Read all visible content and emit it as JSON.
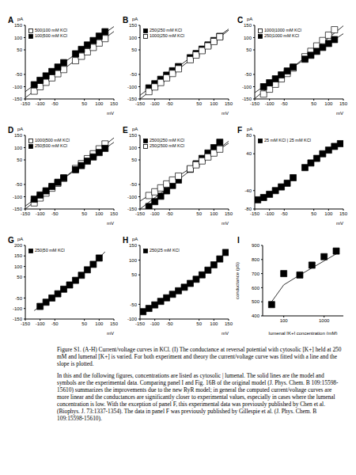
{
  "chart_data": [
    {
      "type": "scatter",
      "label": "A",
      "xlabel": "mV",
      "ylabel": "pA",
      "xlim": [
        -150,
        150
      ],
      "xticks": [
        -150,
        -100,
        -50,
        50,
        100,
        150
      ],
      "ylim": [
        -150,
        150
      ],
      "yticks": [
        -150,
        -100,
        -50,
        50,
        100,
        150
      ],
      "legend": "upper left",
      "series": [
        {
          "name": "500|100 mM KCl",
          "color": "#000000",
          "marker": "square_open",
          "x": [
            -120,
            -100,
            -80,
            -60,
            -40,
            -20,
            20,
            40,
            60,
            80,
            100,
            120
          ],
          "values": [
            -118,
            -100,
            -82,
            -64,
            -47,
            -30,
            6,
            24,
            42,
            60,
            78,
            96
          ],
          "model_x": [
            -150,
            0,
            150
          ],
          "model_values": [
            -145,
            -10,
            125
          ]
        },
        {
          "name": "100|500 mM KCl",
          "color": "#000000",
          "marker": "square",
          "x": [
            -120,
            -100,
            -80,
            -60,
            -40,
            -20,
            20,
            40,
            60,
            80,
            100,
            120
          ],
          "values": [
            -92,
            -74,
            -56,
            -38,
            -20,
            -2,
            34,
            52,
            70,
            88,
            106,
            124
          ],
          "model_x": [
            -150,
            0,
            150
          ],
          "model_values": [
            -120,
            15,
            145
          ]
        }
      ]
    },
    {
      "type": "scatter",
      "label": "B",
      "xlabel": "mV",
      "ylabel": "pA",
      "xlim": [
        -150,
        150
      ],
      "xticks": [
        -150,
        -100,
        -50,
        50,
        100,
        150
      ],
      "ylim": [
        -150,
        150
      ],
      "yticks": [
        -150,
        -100,
        -50,
        50,
        100,
        150
      ],
      "legend": "upper left",
      "series": [
        {
          "name": "250|250 mM KCl",
          "color": "#000000",
          "marker": "square",
          "x": [
            -120,
            -100,
            -80,
            -60,
            -40,
            -20,
            20,
            40,
            60,
            80,
            100,
            120
          ],
          "values": [
            -105,
            -88,
            -70,
            -53,
            -35,
            -18,
            18,
            35,
            53,
            70,
            88,
            105
          ],
          "model_x": [
            -150,
            0,
            150
          ],
          "model_values": [
            -135,
            0,
            135
          ]
        },
        {
          "name": "1000|250 mM KCl",
          "color": "#000000",
          "marker": "square_open",
          "x": [
            -120,
            -100,
            -80,
            -60,
            -40,
            -20,
            20,
            40,
            60,
            80,
            100,
            120
          ],
          "values": [
            -120,
            -101,
            -83,
            -64,
            -46,
            -27,
            10,
            29,
            47,
            66,
            84,
            103
          ],
          "model_x": [
            -150,
            0,
            150
          ],
          "model_values": [
            -150,
            -10,
            130
          ]
        }
      ]
    },
    {
      "type": "scatter",
      "label": "C",
      "xlabel": "mV",
      "ylabel": "pA",
      "xlim": [
        -150,
        150
      ],
      "xticks": [
        -150,
        -100,
        -50,
        50,
        100,
        150
      ],
      "ylim": [
        -150,
        150
      ],
      "yticks": [
        -150,
        -100,
        -50,
        50,
        100,
        150
      ],
      "legend": "upper left",
      "series": [
        {
          "name": "1000|1000 mM KCl",
          "color": "#000000",
          "marker": "square_open",
          "x": [
            -120,
            -100,
            -80,
            -60,
            -40,
            -20,
            20,
            40,
            60,
            80,
            100,
            120
          ],
          "values": [
            -130,
            -110,
            -90,
            -68,
            -46,
            -24,
            22,
            44,
            66,
            88,
            110,
            132
          ],
          "model_x": [
            -150,
            0,
            150
          ],
          "model_values": [
            -148,
            0,
            148
          ]
        },
        {
          "name": "250|1000 mM KCl",
          "color": "#000000",
          "marker": "square",
          "x": [
            -120,
            -100,
            -80,
            -60,
            -40,
            -20,
            20,
            40,
            60,
            80,
            100,
            120
          ],
          "values": [
            -100,
            -84,
            -68,
            -52,
            -36,
            -20,
            12,
            28,
            44,
            60,
            76,
            92
          ],
          "model_x": [
            -150,
            0,
            150
          ],
          "model_values": [
            -124,
            -4,
            116
          ]
        }
      ]
    },
    {
      "type": "scatter",
      "label": "D",
      "xlabel": "mV",
      "ylabel": "pA",
      "xlim": [
        -150,
        150
      ],
      "xticks": [
        -150,
        -100,
        -50,
        50,
        100,
        150
      ],
      "ylim": [
        -150,
        150
      ],
      "yticks": [
        -150,
        -100,
        -50,
        50,
        100,
        150
      ],
      "legend": "upper left",
      "series": [
        {
          "name": "1000|500 mM KCl",
          "color": "#000000",
          "marker": "square_open",
          "x": [
            -120,
            -100,
            -80,
            -60,
            -40,
            -20,
            20,
            40,
            60,
            80,
            100,
            120
          ],
          "values": [
            -125,
            -105,
            -85,
            -65,
            -45,
            -25,
            15,
            35,
            55,
            75,
            95,
            115
          ],
          "model_x": [
            -150,
            0,
            150
          ],
          "model_values": [
            -150,
            -5,
            140
          ]
        },
        {
          "name": "250|500 mM KCl",
          "color": "#000000",
          "marker": "square",
          "x": [
            -120,
            -100,
            -80,
            -60,
            -40,
            -20,
            20,
            40,
            60,
            80,
            100,
            120
          ],
          "values": [
            -110,
            -93,
            -76,
            -58,
            -41,
            -23,
            10,
            27,
            45,
            62,
            80,
            97
          ],
          "model_x": [
            -150,
            0,
            150
          ],
          "model_values": [
            -138,
            -8,
            122
          ]
        }
      ]
    },
    {
      "type": "scatter",
      "label": "E",
      "xlabel": "mV",
      "ylabel": "pA",
      "xlim": [
        -150,
        150
      ],
      "xticks": [
        -150,
        -100,
        -50,
        50,
        100,
        150
      ],
      "ylim": [
        -150,
        150
      ],
      "yticks": [
        -150,
        -100,
        -50,
        50,
        100,
        150
      ],
      "legend": "upper left",
      "series": [
        {
          "name": "2500|250 mM KCl",
          "color": "#000000",
          "marker": "square",
          "x": [
            -120,
            -100,
            -80,
            -60,
            -40,
            -20,
            20,
            40,
            60,
            80,
            100,
            120
          ],
          "values": [
            -140,
            -120,
            -98,
            -76,
            -54,
            -32,
            12,
            34,
            56,
            78,
            100,
            122
          ],
          "model_x": [
            -150,
            0,
            150
          ],
          "model_values": [
            -150,
            -12,
            126
          ]
        },
        {
          "name": "250|2500 mM KCl",
          "color": "#000000",
          "marker": "square_open",
          "x": [
            -120,
            -100,
            -80,
            -60,
            -40,
            -20,
            20,
            40,
            60,
            80,
            100,
            120
          ],
          "values": [
            -95,
            -80,
            -64,
            -48,
            -32,
            -16,
            14,
            30,
            46,
            62,
            78,
            94
          ],
          "model_x": [
            -150,
            0,
            150
          ],
          "model_values": [
            -118,
            0,
            118
          ]
        }
      ]
    },
    {
      "type": "scatter",
      "label": "F",
      "xlabel": "mV",
      "ylabel": "pA",
      "xlim": [
        -150,
        150
      ],
      "xticks": [
        -150,
        -100,
        -50,
        50,
        100,
        150
      ],
      "ylim": [
        -80,
        80
      ],
      "yticks": [
        -80,
        -40,
        40,
        80
      ],
      "legend": "upper left",
      "series": [
        {
          "name": "25 mM KCl | 25 mM KCl",
          "color": "#000000",
          "marker": "square",
          "x": [
            -140,
            -120,
            -100,
            -80,
            -60,
            -40,
            -20,
            20,
            40,
            60,
            80,
            100,
            120,
            140
          ],
          "values": [
            -60,
            -55,
            -48,
            -40,
            -32,
            -24,
            -12,
            10,
            20,
            30,
            40,
            48,
            56,
            62
          ]
        }
      ]
    },
    {
      "type": "scatter",
      "label": "G",
      "xlabel": "mV",
      "ylabel": "pA",
      "xlim": [
        -150,
        150
      ],
      "xticks": [
        -150,
        -100,
        -50,
        50,
        100,
        150
      ],
      "ylim": [
        -150,
        200
      ],
      "yticks": [
        -150,
        -100,
        -50,
        50,
        100,
        150,
        200
      ],
      "legend": "upper left",
      "series": [
        {
          "name": "250|50 mM KCl",
          "color": "#000000",
          "marker": "square",
          "x": [
            -100,
            -80,
            -60,
            -40,
            -20,
            0,
            20,
            40,
            60,
            80,
            100
          ],
          "values": [
            -90,
            -70,
            -50,
            -30,
            -8,
            12,
            34,
            58,
            84,
            110,
            140
          ],
          "model_x": [
            -120,
            -60,
            0,
            60,
            120
          ],
          "model_values": [
            -110,
            -52,
            10,
            82,
            170
          ]
        }
      ]
    },
    {
      "type": "scatter",
      "label": "H",
      "xlabel": "mV",
      "ylabel": "pA",
      "xlim": [
        -150,
        150
      ],
      "xticks": [
        -150,
        -100,
        -50,
        50,
        100,
        150
      ],
      "ylim": [
        -100,
        150
      ],
      "yticks": [
        -100,
        -50,
        50,
        100,
        150
      ],
      "legend": "upper left",
      "series": [
        {
          "name": "250|25 mM KCl",
          "color": "#000000",
          "marker": "square",
          "x": [
            -140,
            -120,
            -100,
            -80,
            -60,
            -40,
            -20,
            0,
            20,
            40,
            60,
            80,
            100,
            120,
            140
          ],
          "values": [
            -75,
            -64,
            -52,
            -40,
            -28,
            -16,
            -4,
            8,
            21,
            35,
            50,
            66,
            84,
            104,
            126
          ],
          "model_x": [
            -150,
            -75,
            0,
            75,
            150
          ],
          "model_values": [
            -80,
            -38,
            8,
            62,
            135
          ]
        }
      ]
    },
    {
      "type": "scatter",
      "label": "I",
      "xlabel": "lumenal [K+] concentration (mM)",
      "ylabel": "conductance (pS)",
      "log": "x",
      "xlim": [
        30,
        3000
      ],
      "xticks": [
        100,
        1000
      ],
      "ylim": [
        400,
        900
      ],
      "yticks": [
        400,
        500,
        600,
        700,
        800,
        900
      ],
      "series": [
        {
          "type": "line",
          "color": "#000000",
          "x": [
            50,
            100,
            250,
            500,
            1000,
            2000
          ],
          "values": [
            500,
            620,
            690,
            740,
            790,
            840
          ]
        },
        {
          "type": "scatter",
          "marker": "square",
          "color": "#000000",
          "x": [
            50,
            100,
            250,
            500,
            1000,
            2000
          ],
          "values": [
            480,
            700,
            690,
            760,
            820,
            860
          ]
        }
      ]
    }
  ],
  "caption": {
    "paragraphs": [
      "Figure S1.  (A-H) Current/voltage curves in KCl.  (I) The conductance at reversal potential with cytosolic [K+] held at 250 mM and lumenal [K+] is varied.  For both experiment and theory the current/voltage curve was fitted with a line and the slope is plotted.",
      "In this and the following figures, concentrations are listed as cytosolic | lumenal.  The solid lines are the model and symbols are the experimental data.  Comparing panel I and Fig. 16B of the original model (J. Phys. Chem. B 109:15598-15610) summarizes the improvements due to the new RyR model; in general the computed current/voltage curves are more linear and the conductances are significantly closer to experimental values, especially in cases where the lumenal concentration is low.  With the exception of panel F, this experimental data was previously published by Chen et al. (Biophys. J. 73:1337-1354).  The data in panel F was previously published by Gillespie et al. (J. Phys. Chem. B 109:15598-15610)."
    ]
  }
}
